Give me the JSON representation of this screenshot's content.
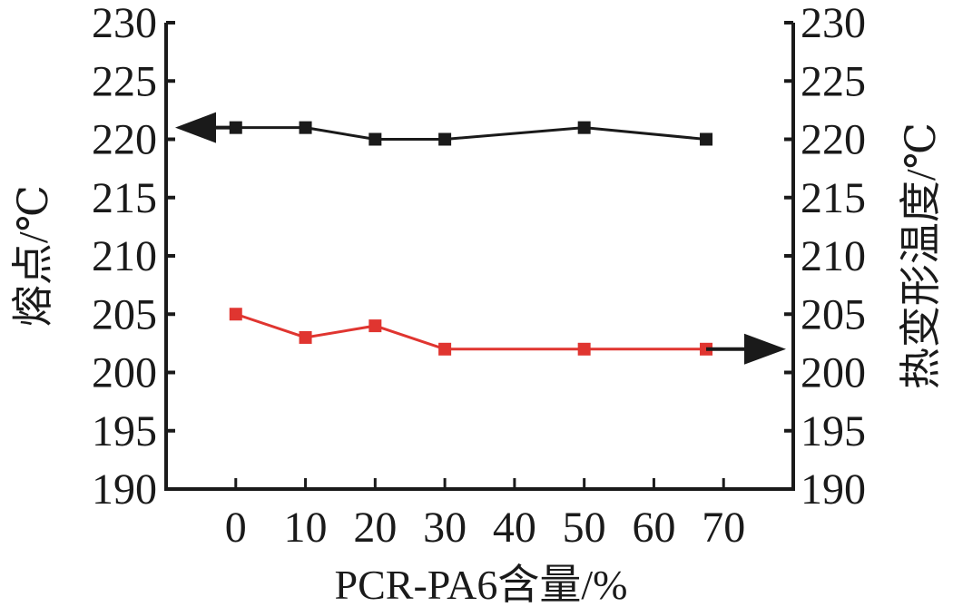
{
  "chart_data": {
    "type": "line",
    "title": "",
    "xlabel": "PCR-PA6含量/%",
    "ylabel_left": "熔点/℃",
    "ylabel_right": "热变形温度/℃",
    "xlim": [
      -10,
      80
    ],
    "ylim": [
      190,
      230
    ],
    "xticks": [
      "0",
      "10",
      "20",
      "30",
      "40",
      "50",
      "60",
      "70"
    ],
    "yticks": [
      "190",
      "195",
      "200",
      "205",
      "210",
      "215",
      "220",
      "225",
      "230"
    ],
    "x": [
      0,
      10,
      20,
      30,
      50,
      67.5
    ],
    "grid": false,
    "legend": "none",
    "series": [
      {
        "name": "熔点",
        "axis": "left",
        "color": "#1a1a1a",
        "values": [
          221,
          221,
          220,
          220,
          221,
          220
        ],
        "arrow": "left"
      },
      {
        "name": "热变形温度",
        "axis": "right",
        "color": "#e03530",
        "values": [
          205,
          203,
          204,
          202,
          202,
          202
        ],
        "arrow": "right"
      }
    ]
  }
}
